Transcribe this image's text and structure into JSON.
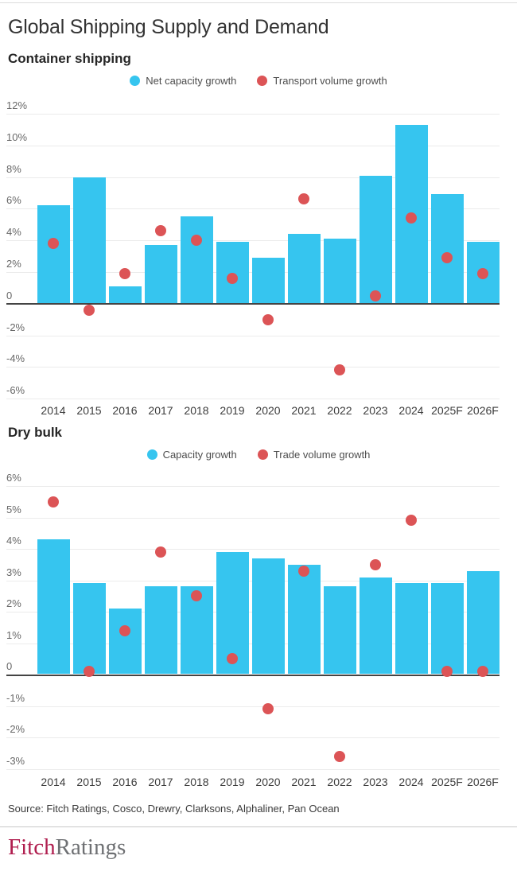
{
  "page_title": "Global Shipping Supply and Demand",
  "colors": {
    "bar": "#36c5ef",
    "dot": "#dc5456",
    "gridline": "#ebebeb",
    "zero_axis": "#444444",
    "logo_red": "#b01e4f",
    "logo_gray": "#6e7073"
  },
  "chart_data": [
    {
      "type": "bar",
      "title": "Container shipping",
      "categories": [
        "2014",
        "2015",
        "2016",
        "2017",
        "2018",
        "2019",
        "2020",
        "2021",
        "2022",
        "2023",
        "2024",
        "2025F",
        "2026F"
      ],
      "series": [
        {
          "name": "Net capacity growth",
          "mark": "bar",
          "color": "#36c5ef",
          "values": [
            6.2,
            8.0,
            1.1,
            3.7,
            5.5,
            3.9,
            2.9,
            4.4,
            4.1,
            8.1,
            11.3,
            6.9,
            3.9
          ]
        },
        {
          "name": "Transport volume growth",
          "mark": "scatter",
          "color": "#dc5456",
          "values": [
            3.8,
            -0.4,
            1.9,
            4.6,
            4.0,
            1.6,
            -1.0,
            6.6,
            -4.2,
            0.5,
            5.4,
            2.9,
            1.9
          ]
        }
      ],
      "ylabel": "",
      "xlabel": "",
      "ylim": [
        -6,
        12
      ],
      "ytick_step": 2,
      "ytick_labels": [
        "12%",
        "10%",
        "8%",
        "6%",
        "4%",
        "2%",
        "0",
        "-2%",
        "-4%",
        "-6%"
      ],
      "grid": true,
      "legend_position": "top-center"
    },
    {
      "type": "bar",
      "title": "Dry bulk",
      "categories": [
        "2014",
        "2015",
        "2016",
        "2017",
        "2018",
        "2019",
        "2020",
        "2021",
        "2022",
        "2023",
        "2024",
        "2025F",
        "2026F"
      ],
      "series": [
        {
          "name": "Capacity growth",
          "mark": "bar",
          "color": "#36c5ef",
          "values": [
            4.3,
            2.9,
            2.1,
            2.8,
            2.8,
            3.9,
            3.7,
            3.5,
            2.8,
            3.1,
            2.9,
            2.9,
            3.3
          ]
        },
        {
          "name": "Trade volume growth",
          "mark": "scatter",
          "color": "#dc5456",
          "values": [
            5.5,
            0.1,
            1.4,
            3.9,
            2.5,
            0.5,
            -1.1,
            3.3,
            -2.6,
            3.5,
            4.9,
            0.1,
            0.1
          ]
        }
      ],
      "ylabel": "",
      "xlabel": "",
      "ylim": [
        -3,
        6
      ],
      "ytick_step": 1,
      "ytick_labels": [
        "6%",
        "5%",
        "4%",
        "3%",
        "2%",
        "1%",
        "0",
        "-1%",
        "-2%",
        "-3%"
      ],
      "grid": true,
      "legend_position": "top-center"
    }
  ],
  "footer": {
    "source": "Source: Fitch Ratings, Cosco, Drewry, Clarksons, Alphaliner, Pan Ocean",
    "logo_part1": "Fitch",
    "logo_part2": "Ratings"
  }
}
